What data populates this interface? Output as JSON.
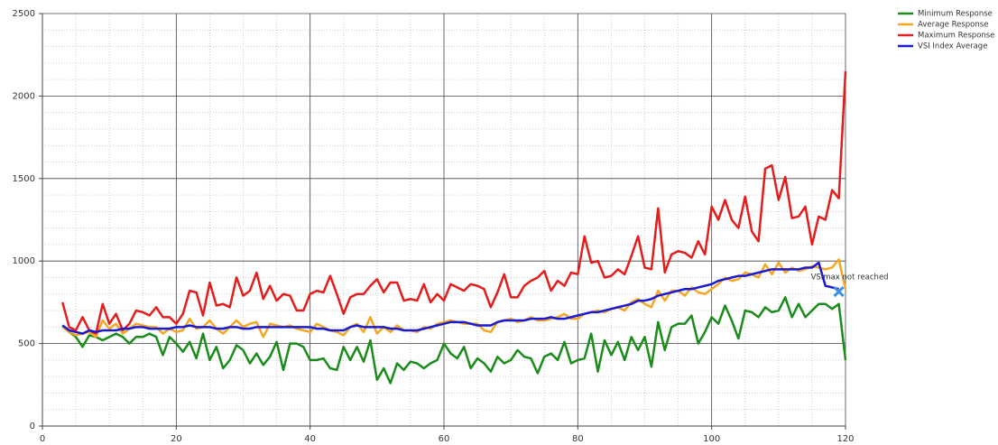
{
  "chart_data": {
    "type": "line",
    "x": [
      3,
      4,
      5,
      6,
      7,
      8,
      9,
      10,
      11,
      12,
      13,
      14,
      15,
      16,
      17,
      18,
      19,
      20,
      21,
      22,
      23,
      24,
      25,
      26,
      27,
      28,
      29,
      30,
      31,
      32,
      33,
      34,
      35,
      36,
      37,
      38,
      39,
      40,
      41,
      42,
      43,
      44,
      45,
      46,
      47,
      48,
      49,
      50,
      51,
      52,
      53,
      54,
      55,
      56,
      57,
      58,
      59,
      60,
      61,
      62,
      63,
      64,
      65,
      66,
      67,
      68,
      69,
      70,
      71,
      72,
      73,
      74,
      75,
      76,
      77,
      78,
      79,
      80,
      81,
      82,
      83,
      84,
      85,
      86,
      87,
      88,
      89,
      90,
      91,
      92,
      93,
      94,
      95,
      96,
      97,
      98,
      99,
      100,
      101,
      102,
      103,
      104,
      105,
      106,
      107,
      108,
      109,
      110,
      111,
      112,
      113,
      114,
      115,
      116,
      117,
      118,
      119,
      120
    ],
    "series": [
      {
        "name": "Minimum Response",
        "color": "#1b8c1b",
        "values": [
          610,
          570,
          540,
          480,
          550,
          540,
          520,
          540,
          560,
          540,
          500,
          540,
          540,
          560,
          540,
          430,
          540,
          500,
          450,
          510,
          410,
          560,
          400,
          480,
          350,
          400,
          490,
          460,
          380,
          440,
          370,
          420,
          510,
          340,
          500,
          500,
          480,
          400,
          400,
          410,
          350,
          340,
          480,
          400,
          480,
          390,
          520,
          280,
          350,
          260,
          380,
          340,
          390,
          380,
          350,
          380,
          400,
          500,
          440,
          410,
          480,
          350,
          410,
          380,
          330,
          420,
          380,
          400,
          460,
          420,
          410,
          320,
          420,
          440,
          400,
          510,
          380,
          400,
          410,
          560,
          330,
          520,
          430,
          510,
          400,
          540,
          460,
          540,
          360,
          630,
          460,
          600,
          620,
          620,
          670,
          500,
          570,
          660,
          620,
          730,
          640,
          530,
          700,
          690,
          660,
          720,
          690,
          700,
          780,
          660,
          740,
          660,
          700,
          740,
          740,
          710,
          740,
          400
        ]
      },
      {
        "name": "Average Response",
        "color": "#f5a623",
        "values": [
          600,
          570,
          550,
          560,
          570,
          540,
          640,
          590,
          620,
          560,
          590,
          620,
          610,
          600,
          600,
          560,
          590,
          570,
          580,
          650,
          590,
          600,
          640,
          590,
          560,
          600,
          640,
          600,
          620,
          630,
          540,
          620,
          610,
          600,
          610,
          590,
          580,
          570,
          620,
          600,
          580,
          570,
          550,
          600,
          620,
          570,
          660,
          560,
          600,
          570,
          610,
          580,
          580,
          570,
          600,
          590,
          620,
          630,
          640,
          630,
          620,
          620,
          620,
          580,
          570,
          630,
          640,
          650,
          630,
          640,
          660,
          640,
          640,
          650,
          660,
          680,
          650,
          650,
          680,
          690,
          700,
          690,
          710,
          720,
          700,
          750,
          770,
          740,
          720,
          820,
          760,
          820,
          820,
          790,
          840,
          810,
          800,
          830,
          860,
          900,
          880,
          890,
          930,
          920,
          900,
          980,
          920,
          990,
          930,
          960,
          940,
          950,
          970,
          960,
          950,
          960,
          1010,
          830
        ]
      },
      {
        "name": "Maximum Response",
        "color": "#e51c1c",
        "values": [
          750,
          600,
          580,
          660,
          580,
          560,
          740,
          620,
          680,
          580,
          620,
          700,
          690,
          670,
          720,
          660,
          660,
          620,
          680,
          820,
          810,
          670,
          870,
          730,
          740,
          720,
          900,
          790,
          820,
          930,
          770,
          850,
          760,
          800,
          790,
          700,
          700,
          800,
          820,
          810,
          910,
          800,
          680,
          780,
          800,
          800,
          850,
          890,
          810,
          870,
          870,
          760,
          770,
          760,
          860,
          750,
          800,
          760,
          860,
          840,
          820,
          860,
          850,
          830,
          720,
          810,
          920,
          780,
          780,
          850,
          880,
          900,
          940,
          820,
          880,
          850,
          930,
          920,
          1150,
          990,
          1000,
          900,
          910,
          950,
          920,
          1030,
          1150,
          960,
          950,
          1320,
          930,
          1040,
          1060,
          1050,
          1020,
          1120,
          1040,
          1330,
          1250,
          1370,
          1250,
          1200,
          1390,
          1180,
          1120,
          1560,
          1580,
          1370,
          1510,
          1260,
          1270,
          1330,
          1100,
          1270,
          1250,
          1430,
          1380,
          2150
        ]
      },
      {
        "name": "VSI Index Average",
        "color": "#1a1ad4",
        "values": [
          610,
          580,
          570,
          560,
          580,
          570,
          580,
          580,
          580,
          590,
          590,
          600,
          600,
          590,
          590,
          590,
          590,
          600,
          600,
          610,
          600,
          600,
          600,
          590,
          590,
          600,
          600,
          590,
          590,
          600,
          600,
          600,
          600,
          600,
          600,
          600,
          600,
          600,
          590,
          590,
          580,
          580,
          580,
          600,
          610,
          600,
          600,
          600,
          600,
          590,
          590,
          580,
          580,
          580,
          590,
          600,
          610,
          620,
          630,
          630,
          630,
          620,
          610,
          610,
          610,
          630,
          640,
          640,
          640,
          640,
          650,
          650,
          650,
          660,
          650,
          650,
          660,
          670,
          680,
          690,
          690,
          700,
          710,
          720,
          730,
          740,
          760,
          760,
          770,
          790,
          800,
          810,
          820,
          830,
          830,
          840,
          850,
          860,
          880,
          890,
          900,
          910,
          910,
          920,
          930,
          940,
          950,
          950,
          950,
          950,
          950,
          960,
          960,
          990,
          850,
          840,
          830,
          null
        ]
      }
    ],
    "vsimax": {
      "x": 119,
      "y": 815,
      "label": "VSImax not reached",
      "color": "#3b8fe0"
    },
    "xlim": [
      0,
      120
    ],
    "xticks": [
      0,
      20,
      40,
      60,
      80,
      100,
      120
    ],
    "ylim": [
      0,
      2500
    ],
    "yticks": [
      0,
      500,
      1000,
      1500,
      2000,
      2500
    ],
    "grid": true
  }
}
